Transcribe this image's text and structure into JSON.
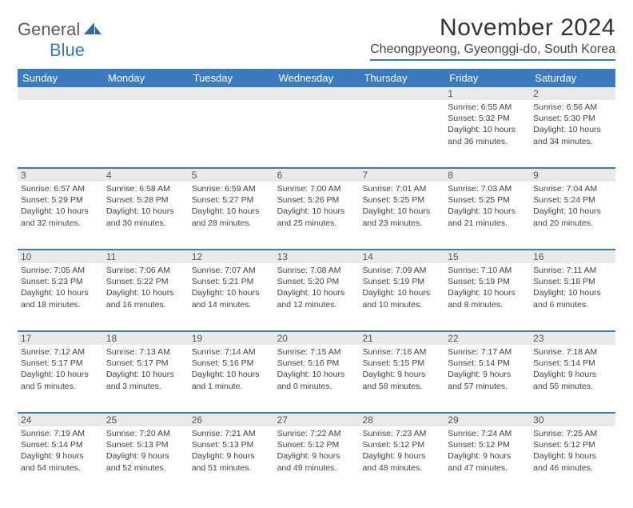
{
  "logo": {
    "part1": "General",
    "part2": "Blue"
  },
  "title": "November 2024",
  "location": "Cheongpyeong, Gyeonggi-do, South Korea",
  "colors": {
    "brand_blue": "#3a7bbf",
    "header_text": "#ffffff",
    "gray_band": "#e9e9e9",
    "text": "#424242",
    "title_text": "#333333",
    "logo_gray": "#5a5a5a"
  },
  "day_headers": [
    "Sunday",
    "Monday",
    "Tuesday",
    "Wednesday",
    "Thursday",
    "Friday",
    "Saturday"
  ],
  "weeks": [
    [
      {
        "num": "",
        "sunrise": "",
        "sunset": "",
        "daylight1": "",
        "daylight2": ""
      },
      {
        "num": "",
        "sunrise": "",
        "sunset": "",
        "daylight1": "",
        "daylight2": ""
      },
      {
        "num": "",
        "sunrise": "",
        "sunset": "",
        "daylight1": "",
        "daylight2": ""
      },
      {
        "num": "",
        "sunrise": "",
        "sunset": "",
        "daylight1": "",
        "daylight2": ""
      },
      {
        "num": "",
        "sunrise": "",
        "sunset": "",
        "daylight1": "",
        "daylight2": ""
      },
      {
        "num": "1",
        "sunrise": "Sunrise: 6:55 AM",
        "sunset": "Sunset: 5:32 PM",
        "daylight1": "Daylight: 10 hours",
        "daylight2": "and 36 minutes."
      },
      {
        "num": "2",
        "sunrise": "Sunrise: 6:56 AM",
        "sunset": "Sunset: 5:30 PM",
        "daylight1": "Daylight: 10 hours",
        "daylight2": "and 34 minutes."
      }
    ],
    [
      {
        "num": "3",
        "sunrise": "Sunrise: 6:57 AM",
        "sunset": "Sunset: 5:29 PM",
        "daylight1": "Daylight: 10 hours",
        "daylight2": "and 32 minutes."
      },
      {
        "num": "4",
        "sunrise": "Sunrise: 6:58 AM",
        "sunset": "Sunset: 5:28 PM",
        "daylight1": "Daylight: 10 hours",
        "daylight2": "and 30 minutes."
      },
      {
        "num": "5",
        "sunrise": "Sunrise: 6:59 AM",
        "sunset": "Sunset: 5:27 PM",
        "daylight1": "Daylight: 10 hours",
        "daylight2": "and 28 minutes."
      },
      {
        "num": "6",
        "sunrise": "Sunrise: 7:00 AM",
        "sunset": "Sunset: 5:26 PM",
        "daylight1": "Daylight: 10 hours",
        "daylight2": "and 25 minutes."
      },
      {
        "num": "7",
        "sunrise": "Sunrise: 7:01 AM",
        "sunset": "Sunset: 5:25 PM",
        "daylight1": "Daylight: 10 hours",
        "daylight2": "and 23 minutes."
      },
      {
        "num": "8",
        "sunrise": "Sunrise: 7:03 AM",
        "sunset": "Sunset: 5:25 PM",
        "daylight1": "Daylight: 10 hours",
        "daylight2": "and 21 minutes."
      },
      {
        "num": "9",
        "sunrise": "Sunrise: 7:04 AM",
        "sunset": "Sunset: 5:24 PM",
        "daylight1": "Daylight: 10 hours",
        "daylight2": "and 20 minutes."
      }
    ],
    [
      {
        "num": "10",
        "sunrise": "Sunrise: 7:05 AM",
        "sunset": "Sunset: 5:23 PM",
        "daylight1": "Daylight: 10 hours",
        "daylight2": "and 18 minutes."
      },
      {
        "num": "11",
        "sunrise": "Sunrise: 7:06 AM",
        "sunset": "Sunset: 5:22 PM",
        "daylight1": "Daylight: 10 hours",
        "daylight2": "and 16 minutes."
      },
      {
        "num": "12",
        "sunrise": "Sunrise: 7:07 AM",
        "sunset": "Sunset: 5:21 PM",
        "daylight1": "Daylight: 10 hours",
        "daylight2": "and 14 minutes."
      },
      {
        "num": "13",
        "sunrise": "Sunrise: 7:08 AM",
        "sunset": "Sunset: 5:20 PM",
        "daylight1": "Daylight: 10 hours",
        "daylight2": "and 12 minutes."
      },
      {
        "num": "14",
        "sunrise": "Sunrise: 7:09 AM",
        "sunset": "Sunset: 5:19 PM",
        "daylight1": "Daylight: 10 hours",
        "daylight2": "and 10 minutes."
      },
      {
        "num": "15",
        "sunrise": "Sunrise: 7:10 AM",
        "sunset": "Sunset: 5:19 PM",
        "daylight1": "Daylight: 10 hours",
        "daylight2": "and 8 minutes."
      },
      {
        "num": "16",
        "sunrise": "Sunrise: 7:11 AM",
        "sunset": "Sunset: 5:18 PM",
        "daylight1": "Daylight: 10 hours",
        "daylight2": "and 6 minutes."
      }
    ],
    [
      {
        "num": "17",
        "sunrise": "Sunrise: 7:12 AM",
        "sunset": "Sunset: 5:17 PM",
        "daylight1": "Daylight: 10 hours",
        "daylight2": "and 5 minutes."
      },
      {
        "num": "18",
        "sunrise": "Sunrise: 7:13 AM",
        "sunset": "Sunset: 5:17 PM",
        "daylight1": "Daylight: 10 hours",
        "daylight2": "and 3 minutes."
      },
      {
        "num": "19",
        "sunrise": "Sunrise: 7:14 AM",
        "sunset": "Sunset: 5:16 PM",
        "daylight1": "Daylight: 10 hours",
        "daylight2": "and 1 minute."
      },
      {
        "num": "20",
        "sunrise": "Sunrise: 7:15 AM",
        "sunset": "Sunset: 5:16 PM",
        "daylight1": "Daylight: 10 hours",
        "daylight2": "and 0 minutes."
      },
      {
        "num": "21",
        "sunrise": "Sunrise: 7:16 AM",
        "sunset": "Sunset: 5:15 PM",
        "daylight1": "Daylight: 9 hours",
        "daylight2": "and 58 minutes."
      },
      {
        "num": "22",
        "sunrise": "Sunrise: 7:17 AM",
        "sunset": "Sunset: 5:14 PM",
        "daylight1": "Daylight: 9 hours",
        "daylight2": "and 57 minutes."
      },
      {
        "num": "23",
        "sunrise": "Sunrise: 7:18 AM",
        "sunset": "Sunset: 5:14 PM",
        "daylight1": "Daylight: 9 hours",
        "daylight2": "and 55 minutes."
      }
    ],
    [
      {
        "num": "24",
        "sunrise": "Sunrise: 7:19 AM",
        "sunset": "Sunset: 5:14 PM",
        "daylight1": "Daylight: 9 hours",
        "daylight2": "and 54 minutes."
      },
      {
        "num": "25",
        "sunrise": "Sunrise: 7:20 AM",
        "sunset": "Sunset: 5:13 PM",
        "daylight1": "Daylight: 9 hours",
        "daylight2": "and 52 minutes."
      },
      {
        "num": "26",
        "sunrise": "Sunrise: 7:21 AM",
        "sunset": "Sunset: 5:13 PM",
        "daylight1": "Daylight: 9 hours",
        "daylight2": "and 51 minutes."
      },
      {
        "num": "27",
        "sunrise": "Sunrise: 7:22 AM",
        "sunset": "Sunset: 5:12 PM",
        "daylight1": "Daylight: 9 hours",
        "daylight2": "and 49 minutes."
      },
      {
        "num": "28",
        "sunrise": "Sunrise: 7:23 AM",
        "sunset": "Sunset: 5:12 PM",
        "daylight1": "Daylight: 9 hours",
        "daylight2": "and 48 minutes."
      },
      {
        "num": "29",
        "sunrise": "Sunrise: 7:24 AM",
        "sunset": "Sunset: 5:12 PM",
        "daylight1": "Daylight: 9 hours",
        "daylight2": "and 47 minutes."
      },
      {
        "num": "30",
        "sunrise": "Sunrise: 7:25 AM",
        "sunset": "Sunset: 5:12 PM",
        "daylight1": "Daylight: 9 hours",
        "daylight2": "and 46 minutes."
      }
    ]
  ]
}
